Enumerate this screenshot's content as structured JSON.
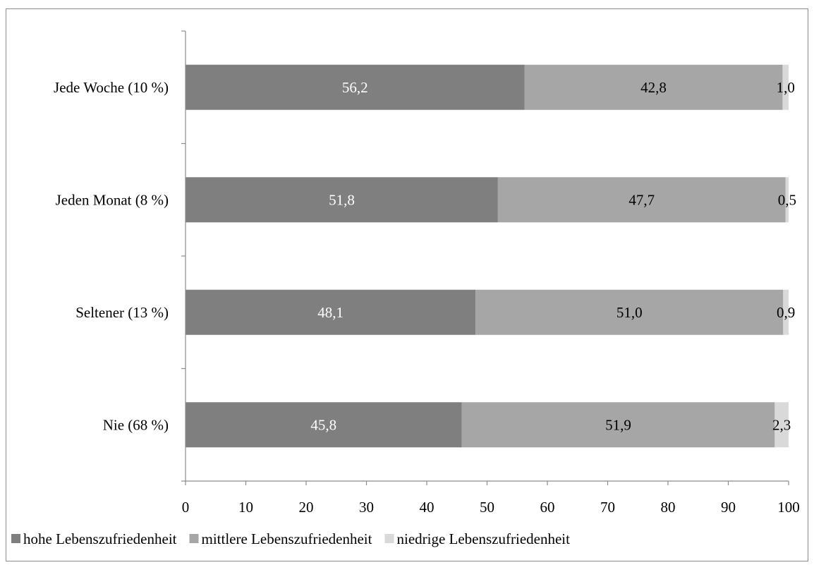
{
  "chart_data": {
    "type": "bar",
    "orientation": "horizontal",
    "stacked": true,
    "categories": [
      "Jede Woche (10 %)",
      "Jeden Monat (8 %)",
      "Seltener (13 %)",
      "Nie (68 %)"
    ],
    "series": [
      {
        "name": "hohe Lebenszufriedenheit",
        "color": "#7f7f7f",
        "label_color": "#ffffff",
        "values": [
          56.2,
          51.8,
          48.1,
          45.8
        ],
        "labels": [
          "56,2",
          "51,8",
          "48,1",
          "45,8"
        ]
      },
      {
        "name": "mittlere Lebenszufriedenheit",
        "color": "#a6a6a6",
        "label_color": "#000000",
        "values": [
          42.8,
          47.7,
          51.0,
          51.9
        ],
        "labels": [
          "42,8",
          "47,7",
          "51,0",
          "51,9"
        ]
      },
      {
        "name": "niedrige Lebenszufriedenheit",
        "color": "#d9d9d9",
        "label_color": "#000000",
        "values": [
          1.0,
          0.5,
          0.9,
          2.3
        ],
        "labels": [
          "1,0",
          "0,5",
          "0,9",
          "2,3"
        ]
      }
    ],
    "xlim": [
      0,
      100
    ],
    "xticks": [
      0,
      10,
      20,
      30,
      40,
      50,
      60,
      70,
      80,
      90,
      100
    ],
    "xtick_labels": [
      "0",
      "10",
      "20",
      "30",
      "40",
      "50",
      "60",
      "70",
      "80",
      "90",
      "100"
    ],
    "grid": false,
    "legend_position": "bottom",
    "title": "",
    "xlabel": "",
    "ylabel": ""
  }
}
